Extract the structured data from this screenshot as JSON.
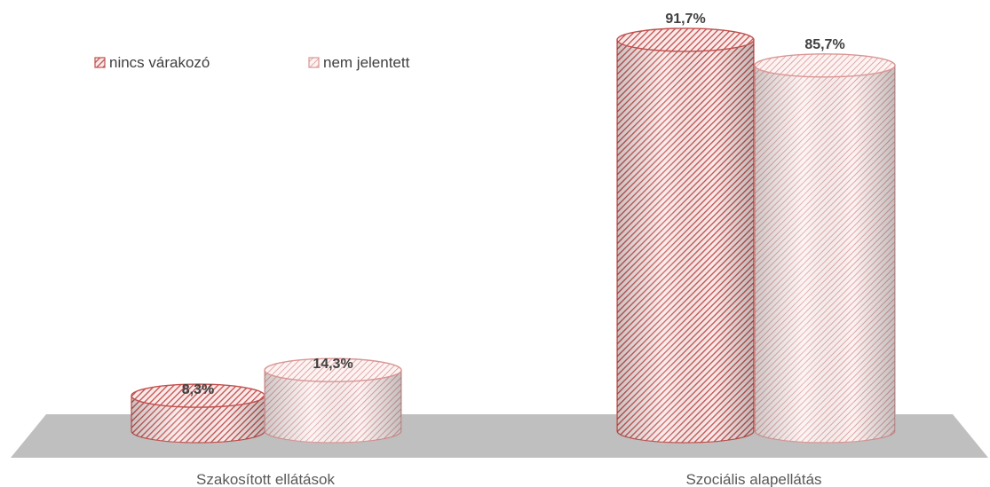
{
  "chart_data": {
    "type": "bar",
    "style": "3d-cylinder",
    "categories": [
      "Szakosított ellátások",
      "Szociális alapellátás"
    ],
    "series": [
      {
        "name": "nincs várakozó",
        "values": [
          8.3,
          91.7
        ],
        "labels": [
          "8,3%",
          "91,7%"
        ],
        "color": "#c0504d",
        "pattern": "dense-diagonal-hatch"
      },
      {
        "name": "nem jelentett",
        "values": [
          14.3,
          85.7
        ],
        "labels": [
          "14,3%",
          "85,7%"
        ],
        "color": "#d99694",
        "pattern": "wide-diagonal-hatch"
      }
    ],
    "ylim": [
      0,
      100
    ],
    "unit": "%",
    "legend_position": "top-left",
    "grid": false
  }
}
